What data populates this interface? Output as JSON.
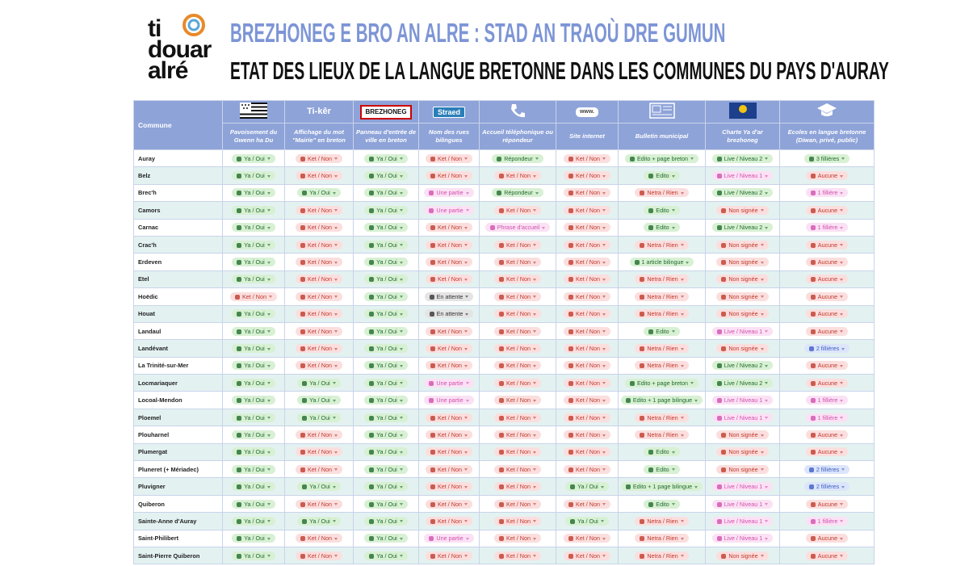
{
  "header": {
    "logo": [
      "ti",
      "douar",
      "alré"
    ],
    "title": "BREZHONEG E BRO AN ALRE : STAD AN TRAOÙ DRE GUMUN",
    "subtitle": "ETAT DES LIEUX DE LA LANGUE BRETONNE DANS LES COMMUNES DU PAYS D'AURAY"
  },
  "table": {
    "columns": [
      {
        "label": "Commune"
      },
      {
        "label": "Pavoisement du Gwenn ha Du"
      },
      {
        "icon_text": "Ti-kêr",
        "label": "Affichage du mot \"Mairie\" en breton"
      },
      {
        "icon_text": "BREZHONEG",
        "label": "Panneau d'entrée de ville en breton"
      },
      {
        "icon_text": "Straed",
        "label": "Nom des rues bilingues"
      },
      {
        "label": "Accueil téléphonique ou répondeur"
      },
      {
        "icon_text": "www.",
        "label": "Site internet"
      },
      {
        "label": "Bulletin municipal"
      },
      {
        "label": "Charte Ya d'ar brezhoneg"
      },
      {
        "label": "Ecoles en langue bretonne (Diwan, privé, public)"
      }
    ],
    "rows": [
      [
        "Auray",
        "Ya / Oui",
        "Ket / Non",
        "Ya / Oui",
        "Ket / Non",
        "Répondeur",
        "Ket / Non",
        "Edito + page breton",
        "Live / Niveau 2",
        "3 fillières"
      ],
      [
        "Belz",
        "Ya / Oui",
        "Ket / Non",
        "Ya / Oui",
        "Ket / Non",
        "Ket / Non",
        "Ket / Non",
        "Edito",
        "Live / Niveau 1",
        "Aucune"
      ],
      [
        "Brec'h",
        "Ya / Oui",
        "Ya / Oui",
        "Ya / Oui",
        "Une partie",
        "Répondeur",
        "Ket / Non",
        "Netra / Rien",
        "Live / Niveau 2",
        "1 fillière"
      ],
      [
        "Camors",
        "Ya / Oui",
        "Ket / Non",
        "Ya / Oui",
        "Une partie",
        "Ket / Non",
        "Ket / Non",
        "Edito",
        "Non signée",
        "Aucune"
      ],
      [
        "Carnac",
        "Ya / Oui",
        "Ket / Non",
        "Ya / Oui",
        "Ket / Non",
        "Phrase d'accueil",
        "Ket / Non",
        "Edito",
        "Live / Niveau 2",
        "1 fillière"
      ],
      [
        "Crac'h",
        "Ya / Oui",
        "Ket / Non",
        "Ya / Oui",
        "Ket / Non",
        "Ket / Non",
        "Ket / Non",
        "Netra / Rien",
        "Non signée",
        "Aucune"
      ],
      [
        "Erdeven",
        "Ya / Oui",
        "Ket / Non",
        "Ya / Oui",
        "Ket / Non",
        "Ket / Non",
        "Ket / Non",
        "1 article bilingue",
        "Non signée",
        "Aucune"
      ],
      [
        "Etel",
        "Ya / Oui",
        "Ket / Non",
        "Ya / Oui",
        "Ket / Non",
        "Ket / Non",
        "Ket / Non",
        "Netra / Rien",
        "Non signée",
        "Aucune"
      ],
      [
        "Hoëdic",
        "Ket / Non",
        "Ket / Non",
        "Ya / Oui",
        "En attente",
        "Ket / Non",
        "Ket / Non",
        "Netra / Rien",
        "Non signée",
        "Aucune"
      ],
      [
        "Houat",
        "Ya / Oui",
        "Ket / Non",
        "Ya / Oui",
        "En attente",
        "Ket / Non",
        "Ket / Non",
        "Netra / Rien",
        "Non signée",
        "Aucune"
      ],
      [
        "Landaul",
        "Ya / Oui",
        "Ket / Non",
        "Ya / Oui",
        "Ket / Non",
        "Ket / Non",
        "Ket / Non",
        "Edito",
        "Live / Niveau 1",
        "Aucune"
      ],
      [
        "Landévant",
        "Ya / Oui",
        "Ket / Non",
        "Ya / Oui",
        "Ket / Non",
        "Ket / Non",
        "Ket / Non",
        "Netra / Rien",
        "Non signée",
        "2 fillières"
      ],
      [
        "La Trinité-sur-Mer",
        "Ya / Oui",
        "Ket / Non",
        "Ya / Oui",
        "Ket / Non",
        "Ket / Non",
        "Ket / Non",
        "Netra / Rien",
        "Live / Niveau 2",
        "Aucune"
      ],
      [
        "Locmariaquer",
        "Ya / Oui",
        "Ya / Oui",
        "Ya / Oui",
        "Une partie",
        "Ket / Non",
        "Ket / Non",
        "Edito + page breton",
        "Live / Niveau 2",
        "Aucune"
      ],
      [
        "Locoal-Mendon",
        "Ya / Oui",
        "Ya / Oui",
        "Ya / Oui",
        "Une partie",
        "Ket / Non",
        "Ket / Non",
        "Edito + 1 page bilingue",
        "Live / Niveau 1",
        "1 fillière"
      ],
      [
        "Ploemel",
        "Ya / Oui",
        "Ya / Oui",
        "Ya / Oui",
        "Ket / Non",
        "Ket / Non",
        "Ket / Non",
        "Netra / Rien",
        "Live / Niveau 1",
        "1 fillière"
      ],
      [
        "Plouharnel",
        "Ya / Oui",
        "Ket / Non",
        "Ya / Oui",
        "Ket / Non",
        "Ket / Non",
        "Ket / Non",
        "Netra / Rien",
        "Non signée",
        "Aucune"
      ],
      [
        "Plumergat",
        "Ya / Oui",
        "Ket / Non",
        "Ya / Oui",
        "Ket / Non",
        "Ket / Non",
        "Ket / Non",
        "Edito",
        "Non signée",
        "Aucune"
      ],
      [
        "Pluneret (+ Mériadec)",
        "Ya / Oui",
        "Ket / Non",
        "Ya / Oui",
        "Ket / Non",
        "Ket / Non",
        "Ket / Non",
        "Edito",
        "Non signée",
        "2 fillières"
      ],
      [
        "Pluvigner",
        "Ya / Oui",
        "Ya / Oui",
        "Ya / Oui",
        "Ket / Non",
        "Ket / Non",
        "Ya / Oui",
        "Edito + 1 page bilingue",
        "Live / Niveau 1",
        "2 fillières"
      ],
      [
        "Quiberon",
        "Ya / Oui",
        "Ket / Non",
        "Ya / Oui",
        "Ket / Non",
        "Ket / Non",
        "Ket / Non",
        "Edito",
        "Live / Niveau 1",
        "Aucune"
      ],
      [
        "Sainte-Anne d'Auray",
        "Ya / Oui",
        "Ya / Oui",
        "Ya / Oui",
        "Ket / Non",
        "Ket / Non",
        "Ya / Oui",
        "Netra / Rien",
        "Live / Niveau 1",
        "1 fillière"
      ],
      [
        "Saint-Philibert",
        "Ya / Oui",
        "Ket / Non",
        "Ya / Oui",
        "Une partie",
        "Ket / Non",
        "Ket / Non",
        "Netra / Rien",
        "Live / Niveau 1",
        "Aucune"
      ],
      [
        "Saint-Pierre Quiberon",
        "Ya / Oui",
        "Ket / Non",
        "Ya / Oui",
        "Ket / Non",
        "Ket / Non",
        "Ket / Non",
        "Netra / Rien",
        "Non signée",
        "Aucune"
      ]
    ]
  }
}
